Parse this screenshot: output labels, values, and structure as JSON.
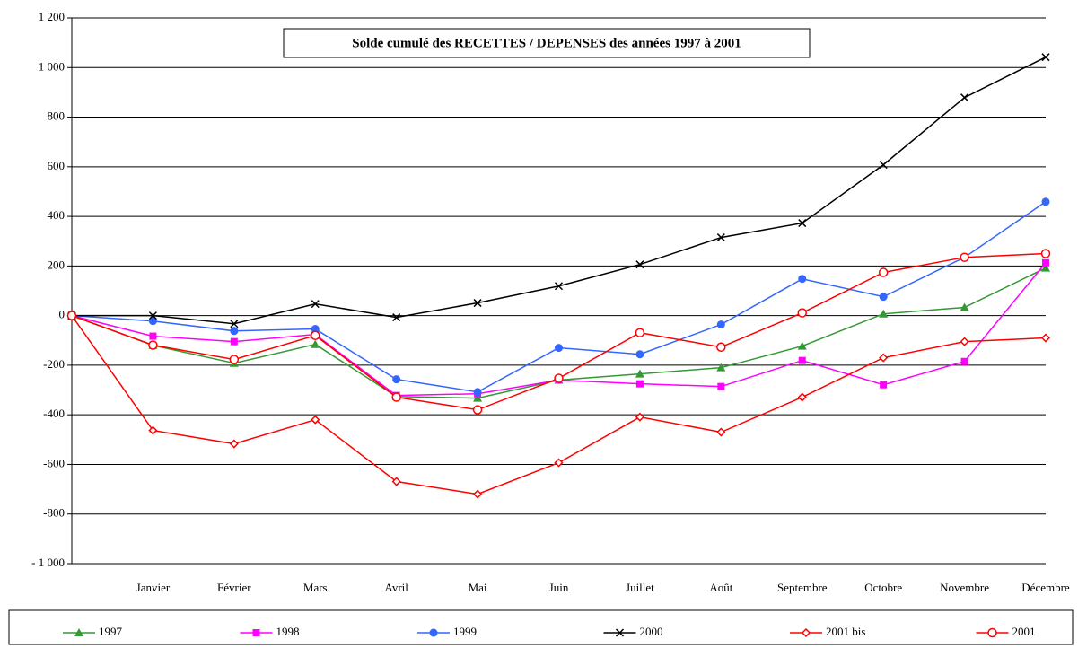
{
  "chart_data": {
    "type": "line",
    "title": "Solde cumulé des RECETTES / DEPENSES des années 1997 à 2001",
    "categories": [
      null,
      "Janvier",
      "Février",
      "Mars",
      "Avril",
      "Mai",
      "Juin",
      "Juillet",
      "Août",
      "Septembre",
      "Octobre",
      "Novembre",
      "Décembre"
    ],
    "series": [
      {
        "name": "1997",
        "color": "#339933",
        "marker": "triangle",
        "values": [
          0,
          -120,
          -192,
          -116,
          -326,
          -333,
          -260,
          -235,
          -210,
          -123,
          7,
          33,
          192
        ]
      },
      {
        "name": "1998",
        "color": "#ff00ff",
        "marker": "square",
        "values": [
          0,
          -83,
          -105,
          -76,
          -322,
          -315,
          -260,
          -275,
          -286,
          -181,
          -279,
          -185,
          213
        ]
      },
      {
        "name": "1999",
        "color": "#3366ff",
        "marker": "circle",
        "values": [
          0,
          -22,
          -62,
          -54,
          -257,
          -308,
          -130,
          -156,
          -36,
          148,
          76,
          235,
          459
        ]
      },
      {
        "name": "2000",
        "color": "#000000",
        "marker": "x",
        "values": [
          0,
          0,
          -33,
          47,
          -7,
          51,
          119,
          206,
          315,
          373,
          608,
          879,
          1042
        ]
      },
      {
        "name": "2001 bis",
        "color": "#ff0000",
        "marker": "diamond-open",
        "values": [
          0,
          -463,
          -517,
          -420,
          -669,
          -720,
          -593,
          -409,
          -470,
          -329,
          -170,
          -105,
          -90
        ]
      },
      {
        "name": "2001",
        "color": "#ff0000",
        "marker": "circle-open",
        "values": [
          0,
          -119,
          -177,
          -80,
          -329,
          -380,
          -253,
          -69,
          -127,
          11,
          174,
          235,
          250
        ]
      }
    ],
    "ylim": [
      -1000,
      1200
    ],
    "yticks": [
      {
        "value": -1000,
        "label": "- 1 000"
      },
      -800,
      -600,
      -400,
      -200,
      0,
      200,
      400,
      600,
      800,
      {
        "value": 1000,
        "label": "1 000"
      },
      {
        "value": 1200,
        "label": "1 200"
      }
    ],
    "grid": true,
    "legend": "bottom"
  }
}
